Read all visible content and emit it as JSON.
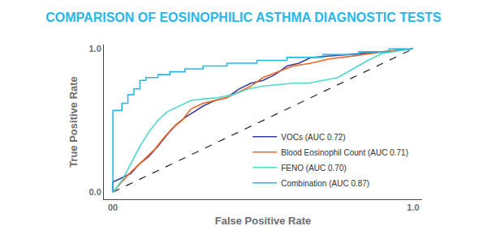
{
  "chart_data": {
    "type": "line",
    "title": "COMPARISON OF EOSINOPHILIC ASTHMA DIAGNOSTIC TESTS",
    "xlabel": "False Positive Rate",
    "ylabel": "True Positive Rate",
    "xlim": [
      -0.03,
      1.03
    ],
    "ylim": [
      -0.05,
      1.03
    ],
    "xticks": [
      {
        "value": 0,
        "label": "00"
      },
      {
        "value": 1,
        "label": "1.0"
      }
    ],
    "yticks": [
      {
        "value": 0,
        "label": "0.0"
      },
      {
        "value": 1,
        "label": "1.0"
      }
    ],
    "grid": false,
    "legend": "lower right",
    "series": [
      {
        "color": "#222222",
        "line_style": "dashed",
        "x": [
          0,
          1
        ],
        "values": [
          0,
          1
        ]
      },
      {
        "name": "VOCs (AUC 0.72)",
        "color": "#3b3a9e",
        "line_style": "solid",
        "x": [
          0,
          0,
          0.03,
          0.06,
          0.09,
          0.12,
          0.15,
          0.18,
          0.21,
          0.24,
          0.27,
          0.3,
          0.34,
          0.38,
          0.42,
          0.46,
          0.5,
          0.54,
          0.58,
          0.62,
          0.66,
          0.72,
          0.8,
          0.9,
          1
        ],
        "values": [
          0,
          0.07,
          0.1,
          0.13,
          0.2,
          0.25,
          0.32,
          0.4,
          0.47,
          0.52,
          0.56,
          0.6,
          0.64,
          0.66,
          0.72,
          0.76,
          0.78,
          0.82,
          0.88,
          0.9,
          0.94,
          0.95,
          0.96,
          0.98,
          1
        ]
      },
      {
        "name": "Blood Eosinophil Count (AUC 0.71)",
        "color": "#f26522",
        "line_style": "solid",
        "x": [
          0,
          0.02,
          0.05,
          0.08,
          0.11,
          0.14,
          0.17,
          0.2,
          0.23,
          0.26,
          0.3,
          0.34,
          0.38,
          0.42,
          0.46,
          0.5,
          0.55,
          0.6,
          0.66,
          0.72,
          0.8,
          0.9,
          1
        ],
        "values": [
          0,
          0.05,
          0.12,
          0.18,
          0.24,
          0.3,
          0.38,
          0.45,
          0.5,
          0.58,
          0.62,
          0.64,
          0.66,
          0.7,
          0.74,
          0.8,
          0.84,
          0.88,
          0.9,
          0.93,
          0.95,
          0.98,
          1
        ]
      },
      {
        "name": "FENO (AUC 0.70)",
        "color": "#4dd9c9",
        "line_style": "solid",
        "x": [
          0,
          0.03,
          0.06,
          0.09,
          0.12,
          0.15,
          0.18,
          0.22,
          0.26,
          0.3,
          0.35,
          0.4,
          0.45,
          0.5,
          0.55,
          0.6,
          0.65,
          0.7,
          0.75,
          0.8,
          0.85,
          0.9,
          1
        ],
        "values": [
          0,
          0.08,
          0.2,
          0.32,
          0.42,
          0.5,
          0.56,
          0.6,
          0.64,
          0.65,
          0.66,
          0.68,
          0.72,
          0.74,
          0.75,
          0.76,
          0.76,
          0.78,
          0.8,
          0.86,
          0.92,
          0.97,
          1
        ]
      },
      {
        "name": "Combination (AUC 0.87)",
        "color": "#29b6e8",
        "line_style": "solid",
        "x": [
          0,
          0,
          0.03,
          0.03,
          0.05,
          0.05,
          0.07,
          0.07,
          0.09,
          0.09,
          0.11,
          0.11,
          0.15,
          0.15,
          0.19,
          0.19,
          0.24,
          0.24,
          0.3,
          0.3,
          0.38,
          0.38,
          0.48,
          0.48,
          0.58,
          0.58,
          0.7,
          0.7,
          0.82,
          0.82,
          0.92,
          0.92,
          1
        ],
        "values": [
          0,
          0.57,
          0.57,
          0.62,
          0.62,
          0.68,
          0.68,
          0.72,
          0.72,
          0.78,
          0.78,
          0.8,
          0.8,
          0.82,
          0.82,
          0.84,
          0.84,
          0.86,
          0.86,
          0.88,
          0.88,
          0.9,
          0.9,
          0.92,
          0.92,
          0.94,
          0.94,
          0.96,
          0.96,
          0.98,
          0.98,
          1,
          1
        ]
      }
    ]
  }
}
